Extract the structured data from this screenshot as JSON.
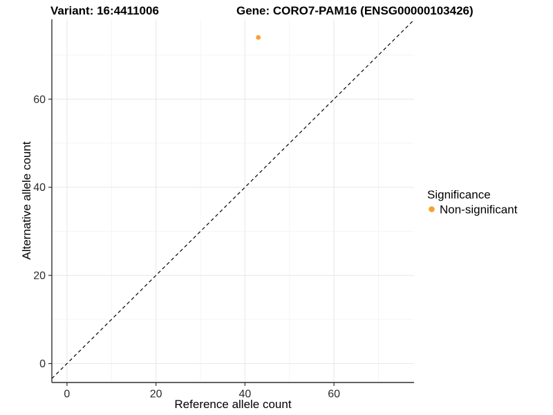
{
  "titles": {
    "variant": "Variant: 16:4411006",
    "gene": "Gene: CORO7-PAM16 (ENSG00000103426)"
  },
  "chart_data": {
    "type": "scatter",
    "title_left": "Variant: 16:4411006",
    "title_right": "Gene: CORO7-PAM16 (ENSG00000103426)",
    "xlabel": "Reference allele count",
    "ylabel": "Alternative allele count",
    "points": [
      {
        "x": 43,
        "y": 74,
        "significance": "Non-significant"
      }
    ],
    "x_ticks": [
      0,
      20,
      40,
      60
    ],
    "y_ticks": [
      0,
      20,
      40,
      60
    ],
    "xlim": [
      -3.4,
      78.0
    ],
    "ylim": [
      -4.3,
      78.1
    ],
    "grid": {
      "major": [
        0,
        20,
        40,
        60
      ],
      "minor": [
        10,
        30,
        50,
        70
      ]
    },
    "identity_line": {
      "slope": 1,
      "intercept": 0,
      "style": "dashed"
    },
    "legend": {
      "position": "right",
      "title": "Significance",
      "items": [
        {
          "label": "Non-significant",
          "color": "#F9A02E"
        }
      ]
    },
    "colors": {
      "point": "#F9A02E",
      "axis_line": "#2f2f2f",
      "grid_major": "#e8e8e8",
      "grid_minor": "#f4f4f4",
      "identity_line": "#000000",
      "background": "#ffffff"
    }
  }
}
